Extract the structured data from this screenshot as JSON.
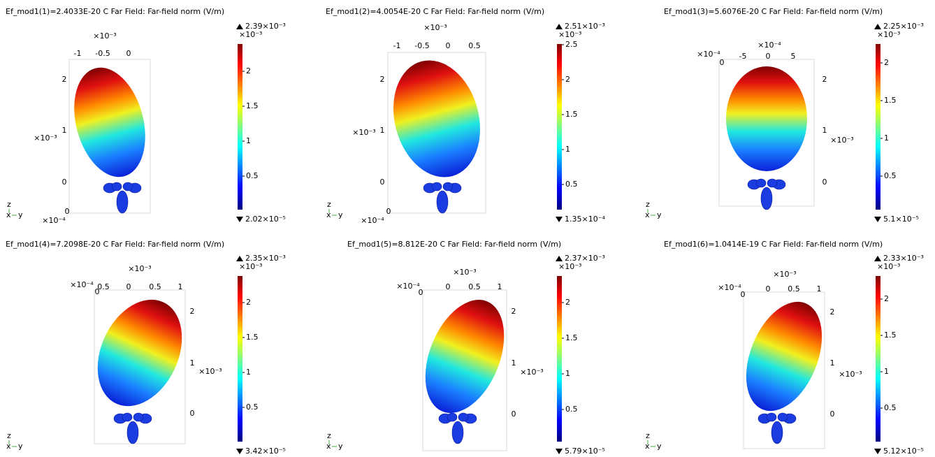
{
  "panels": [
    {
      "title": "Ef_mod1(1)=2.4033E-20 C   Far Field: Far-field norm (V/m)",
      "max": "2.39×10⁻³",
      "min": "2.02×10⁻⁵",
      "colorbar_exponent": "×10⁻³",
      "colorbar_ticks": [
        "2",
        "1.5",
        "1",
        "0.5"
      ],
      "axis_labels": [
        "×10⁻³",
        "-1",
        "-0.5",
        "0",
        "2",
        "1",
        "0",
        "×10⁻³",
        "0",
        "×10⁻⁴"
      ],
      "triad": {
        "z": "z",
        "x": "x",
        "y": "y"
      }
    },
    {
      "title": "Ef_mod1(2)=4.0054E-20 C   Far Field: Far-field norm (V/m)",
      "max": "2.51×10⁻³",
      "min": "1.35×10⁻⁴",
      "colorbar_exponent": "×10⁻³",
      "colorbar_ticks": [
        "2.5",
        "2",
        "1.5",
        "1",
        "0.5"
      ],
      "axis_labels": [
        "×10⁻³",
        "-1",
        "-0.5",
        "0",
        "0.5",
        "2",
        "1",
        "0",
        "×10⁻³",
        "0",
        "×10⁻⁴"
      ],
      "triad": {
        "z": "z",
        "x": "x",
        "y": "y"
      }
    },
    {
      "title": "Ef_mod1(3)=5.6076E-20 C   Far Field: Far-field norm (V/m)",
      "max": "2.25×10⁻³",
      "min": "5.1×10⁻⁵",
      "colorbar_exponent": "×10⁻³",
      "colorbar_ticks": [
        "2",
        "1.5",
        "1",
        "0.5"
      ],
      "axis_labels": [
        "×10⁻⁴",
        "×10⁻⁴",
        "0",
        "-5",
        "0",
        "5",
        "2",
        "1",
        "0",
        "×10⁻³"
      ],
      "triad": {
        "z": "z",
        "x": "x",
        "y": "y"
      }
    },
    {
      "title": "Ef_mod1(4)=7.2098E-20 C   Far Field: Far-field norm (V/m)",
      "max": "2.35×10⁻³",
      "min": "3.42×10⁻⁵",
      "colorbar_exponent": "×10⁻³",
      "colorbar_ticks": [
        "2",
        "1.5",
        "1",
        "0.5"
      ],
      "axis_labels": [
        "×10⁻³",
        "×10⁻⁴",
        "0",
        "0.5",
        "0",
        "0.5",
        "1",
        "2",
        "1",
        "0",
        "×10⁻³"
      ],
      "triad": {
        "z": "z",
        "x": "x",
        "y": "y"
      }
    },
    {
      "title": "Ef_mod1(5)=8.812E-20 C   Far Field: Far-field norm (V/m)",
      "max": "2.37×10⁻³",
      "min": "5.79×10⁻⁵",
      "colorbar_exponent": "×10⁻³",
      "colorbar_ticks": [
        "2",
        "1.5",
        "1",
        "0.5"
      ],
      "axis_labels": [
        "×10⁻³",
        "×10⁻⁴",
        "0",
        "0",
        "0.5",
        "1",
        "2",
        "1",
        "0",
        "×10⁻³"
      ],
      "triad": {
        "z": "z",
        "x": "x",
        "y": "y"
      }
    },
    {
      "title": "Ef_mod1(6)=1.0414E-19 C   Far Field: Far-field norm (V/m)",
      "max": "2.33×10⁻³",
      "min": "5.12×10⁻⁵",
      "colorbar_exponent": "×10⁻³",
      "colorbar_ticks": [
        "2",
        "1.5",
        "1",
        "0.5"
      ],
      "axis_labels": [
        "×10⁻³",
        "×10⁻⁴",
        "0",
        "0",
        "0.5",
        "1",
        "2",
        "1",
        "0",
        "×10⁻³"
      ],
      "triad": {
        "z": "z",
        "x": "x",
        "y": "y"
      }
    }
  ]
}
